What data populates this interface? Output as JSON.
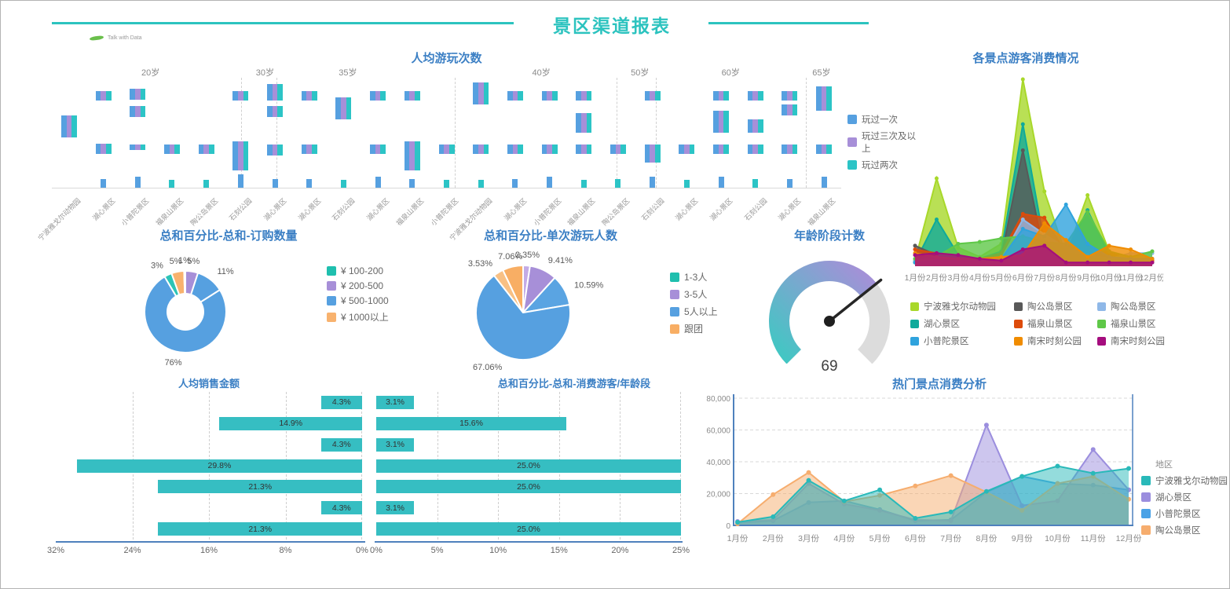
{
  "header": {
    "title": "景区渠道报表",
    "logo_text": "Talk with Data",
    "accent_color": "#2cc3bf",
    "title_color": "#3b7fc4"
  },
  "chart_data": [
    {
      "id": "visits",
      "type": "bar",
      "title": "人均游玩次数",
      "legend": [
        {
          "label": "玩过一次",
          "color": "#56a0e0"
        },
        {
          "label": "玩过三次及以上",
          "color": "#a78fd8"
        },
        {
          "label": "玩过两次",
          "color": "#2cc4c6"
        }
      ],
      "age_groups": [
        {
          "label": "20岁",
          "x": 0.125
        },
        {
          "label": "30岁",
          "x": 0.27
        },
        {
          "label": "35岁",
          "x": 0.375
        },
        {
          "label": "40岁",
          "x": 0.62
        },
        {
          "label": "50岁",
          "x": 0.745
        },
        {
          "label": "60岁",
          "x": 0.86
        },
        {
          "label": "65岁",
          "x": 0.975
        }
      ],
      "separators": [
        0.24,
        0.285,
        0.51,
        0.715,
        0.765,
        0.955
      ],
      "columns": [
        {
          "label": "宁波雅戈尔动物园",
          "bars": [
            [
              0.34,
              0.2,
              "t"
            ]
          ]
        },
        {
          "label": "湖心景区",
          "bars": [
            [
              0.12,
              0.09,
              "t"
            ],
            [
              0.6,
              0.09,
              "t"
            ],
            [
              0.92,
              0.08,
              "b"
            ]
          ]
        },
        {
          "label": "小普陀景区",
          "bars": [
            [
              0.1,
              0.1,
              "t"
            ],
            [
              0.26,
              0.1,
              "t"
            ],
            [
              0.61,
              0.05,
              "t"
            ],
            [
              0.9,
              0.1,
              "b"
            ]
          ]
        },
        {
          "label": "福泉山景区",
          "bars": [
            [
              0.61,
              0.08,
              "t"
            ],
            [
              0.93,
              0.07,
              "g"
            ]
          ]
        },
        {
          "label": "陶公岛景区",
          "bars": [
            [
              0.61,
              0.08,
              "t"
            ],
            [
              0.93,
              0.07,
              "g"
            ]
          ]
        },
        {
          "label": "石刻公园",
          "bars": [
            [
              0.12,
              0.09,
              "t"
            ],
            [
              0.58,
              0.26,
              "t"
            ],
            [
              0.88,
              0.12,
              "b"
            ]
          ]
        },
        {
          "label": "湖心景区",
          "bars": [
            [
              0.06,
              0.15,
              "t"
            ],
            [
              0.26,
              0.1,
              "t"
            ],
            [
              0.61,
              0.1,
              "t"
            ],
            [
              0.92,
              0.08,
              "b"
            ]
          ]
        },
        {
          "label": "湖心景区",
          "bars": [
            [
              0.12,
              0.09,
              "t"
            ],
            [
              0.61,
              0.08,
              "t"
            ],
            [
              0.92,
              0.08,
              "b"
            ]
          ]
        },
        {
          "label": "石刻公园",
          "bars": [
            [
              0.18,
              0.2,
              "t"
            ],
            [
              0.93,
              0.07,
              "g"
            ]
          ]
        },
        {
          "label": "湖心景区",
          "bars": [
            [
              0.12,
              0.09,
              "t"
            ],
            [
              0.61,
              0.08,
              "t"
            ],
            [
              0.9,
              0.1,
              "b"
            ]
          ]
        },
        {
          "label": "福泉山景区",
          "bars": [
            [
              0.12,
              0.09,
              "t"
            ],
            [
              0.58,
              0.26,
              "t"
            ],
            [
              0.92,
              0.08,
              "b"
            ]
          ]
        },
        {
          "label": "小普陀景区",
          "bars": [
            [
              0.61,
              0.08,
              "t"
            ],
            [
              0.93,
              0.07,
              "g"
            ]
          ]
        },
        {
          "label": "宁波雅戈尔动物园",
          "bars": [
            [
              0.04,
              0.2,
              "t"
            ],
            [
              0.61,
              0.08,
              "t"
            ],
            [
              0.93,
              0.07,
              "g"
            ]
          ]
        },
        {
          "label": "湖心景区",
          "bars": [
            [
              0.12,
              0.09,
              "t"
            ],
            [
              0.61,
              0.08,
              "t"
            ],
            [
              0.92,
              0.08,
              "b"
            ]
          ]
        },
        {
          "label": "小普陀景区",
          "bars": [
            [
              0.12,
              0.09,
              "t"
            ],
            [
              0.61,
              0.08,
              "t"
            ],
            [
              0.9,
              0.1,
              "b"
            ]
          ]
        },
        {
          "label": "福泉山景区",
          "bars": [
            [
              0.12,
              0.09,
              "t"
            ],
            [
              0.32,
              0.18,
              "t"
            ],
            [
              0.61,
              0.08,
              "t"
            ],
            [
              0.93,
              0.07,
              "g"
            ]
          ]
        },
        {
          "label": "陶公岛景区",
          "bars": [
            [
              0.61,
              0.08,
              "t"
            ],
            [
              0.92,
              0.08,
              "g"
            ]
          ]
        },
        {
          "label": "石刻公园",
          "bars": [
            [
              0.12,
              0.09,
              "t"
            ],
            [
              0.61,
              0.16,
              "t"
            ],
            [
              0.9,
              0.1,
              "b"
            ]
          ]
        },
        {
          "label": "湖心景区",
          "bars": [
            [
              0.61,
              0.08,
              "t"
            ],
            [
              0.93,
              0.07,
              "g"
            ]
          ]
        },
        {
          "label": "湖心景区",
          "bars": [
            [
              0.12,
              0.09,
              "t"
            ],
            [
              0.3,
              0.2,
              "t"
            ],
            [
              0.61,
              0.08,
              "t"
            ],
            [
              0.9,
              0.1,
              "b"
            ]
          ]
        },
        {
          "label": "石刻公园",
          "bars": [
            [
              0.12,
              0.09,
              "t"
            ],
            [
              0.38,
              0.12,
              "t"
            ],
            [
              0.61,
              0.08,
              "t"
            ],
            [
              0.92,
              0.08,
              "g"
            ]
          ]
        },
        {
          "label": "湖心景区",
          "bars": [
            [
              0.12,
              0.09,
              "t"
            ],
            [
              0.24,
              0.1,
              "t"
            ],
            [
              0.61,
              0.08,
              "t"
            ],
            [
              0.92,
              0.08,
              "b"
            ]
          ]
        },
        {
          "label": "福泉山景区",
          "bars": [
            [
              0.08,
              0.22,
              "t"
            ],
            [
              0.61,
              0.08,
              "t"
            ],
            [
              0.9,
              0.1,
              "b"
            ]
          ]
        }
      ]
    },
    {
      "id": "spot_consumption",
      "type": "area",
      "title": "各景点游客消费情况",
      "months": [
        "1月份",
        "2月份",
        "3月份",
        "4月份",
        "5月份",
        "6月份",
        "7月份",
        "8月份",
        "9月份",
        "10月份",
        "11月份",
        "12月份"
      ],
      "ymax": 100,
      "series": [
        {
          "label": "宁波雅戈尔动物园",
          "color": "#a8d82a",
          "values": [
            3,
            47,
            10,
            5,
            12,
            100,
            40,
            6,
            38,
            8,
            3,
            3
          ]
        },
        {
          "label": "湖心景区",
          "color": "#0faa9b",
          "values": [
            2,
            25,
            6,
            4,
            8,
            76,
            12,
            8,
            30,
            6,
            3,
            4
          ]
        },
        {
          "label": "小普陀景区",
          "color": "#2fa3dd",
          "values": [
            2,
            3,
            3,
            3,
            4,
            20,
            16,
            33,
            12,
            5,
            4,
            4
          ]
        },
        {
          "label": "陶公岛景区",
          "color": "#595959",
          "values": [
            11,
            6,
            4,
            3,
            5,
            62,
            6,
            3,
            3,
            3,
            2,
            2
          ]
        },
        {
          "label": "福泉山景区",
          "color": "#dd4b0b",
          "values": [
            9,
            7,
            5,
            4,
            7,
            28,
            26,
            7,
            6,
            8,
            4,
            3
          ]
        },
        {
          "label": "南宋时刻公园",
          "color": "#f08c00",
          "values": [
            7,
            5,
            4,
            4,
            5,
            6,
            23,
            14,
            5,
            11,
            9,
            4
          ]
        },
        {
          "label": "陶公岛景区",
          "color": "#8fb8e8",
          "values": [
            3,
            3,
            3,
            3,
            4,
            25,
            17,
            10,
            6,
            4,
            7,
            7
          ]
        },
        {
          "label": "福泉山景区",
          "color": "#5fc848",
          "values": [
            4,
            5,
            12,
            13,
            15,
            16,
            13,
            12,
            29,
            8,
            5,
            8
          ]
        },
        {
          "label": "南宋时刻公园",
          "color": "#a50d7e",
          "values": [
            6,
            7,
            6,
            4,
            3,
            9,
            11,
            2,
            2,
            2,
            2,
            2
          ]
        }
      ]
    },
    {
      "id": "order_quantity",
      "type": "pie",
      "title": "总和百分比-总和-订购数量",
      "slices": [
        {
          "pct": "5%",
          "value": 5,
          "color": "#a78fd8"
        },
        {
          "pct": "11%",
          "value": 11,
          "color": "#56a0e0"
        },
        {
          "pct": "76%",
          "value": 75.5,
          "color": "#56a0e0"
        },
        {
          "pct": "3%",
          "value": 3,
          "color": "#2cc4b6"
        },
        {
          "pct": "5%",
          "value": 5,
          "color": "#f8b26e"
        },
        {
          "pct": "1%",
          "value": 0.5,
          "color": "#cfe3f7"
        }
      ],
      "legend": [
        {
          "label": "¥ 100-200",
          "color": "#1fbfae"
        },
        {
          "label": "¥ 200-500",
          "color": "#a78fd8"
        },
        {
          "label": "¥ 500-1000",
          "color": "#56a0e0"
        },
        {
          "label": "¥ 1000以上",
          "color": "#f8b26e"
        }
      ]
    },
    {
      "id": "party_size",
      "type": "pie",
      "title": "总和百分比-单次游玩人数",
      "slices": [
        {
          "pct": "2.35%",
          "value": 2.35,
          "color": "#c3abe6"
        },
        {
          "pct": "9.41%",
          "value": 9.41,
          "color": "#a78fd8"
        },
        {
          "pct": "10.59%",
          "value": 10.59,
          "color": "#5aa4e2"
        },
        {
          "pct": "67.06%",
          "value": 67.06,
          "color": "#56a0e0"
        },
        {
          "pct": "3.53%",
          "value": 3.53,
          "color": "#f8c084"
        },
        {
          "pct": "7.06%",
          "value": 7.06,
          "color": "#f8ae64"
        }
      ],
      "legend": [
        {
          "label": "1-3人",
          "color": "#1fbfae"
        },
        {
          "label": "3-5人",
          "color": "#a78fd8"
        },
        {
          "label": "5人以上",
          "color": "#56a0e0"
        },
        {
          "label": "跟团",
          "color": "#f8ae64"
        }
      ]
    },
    {
      "id": "age_gauge",
      "type": "gauge",
      "title": "年龄阶段计数",
      "value": 69,
      "min": 0,
      "max": 100,
      "color_start": "#41c7c3",
      "color_end": "#a78fd8",
      "color_rest": "#dcdcdc"
    },
    {
      "id": "sales",
      "type": "bar",
      "title": "人均销售金额",
      "direction": "left",
      "max": 32,
      "values": [
        4.3,
        14.9,
        4.3,
        29.8,
        21.3,
        4.3,
        21.3
      ],
      "labels": [
        "4.3%",
        "14.9%",
        "4.3%",
        "29.8%",
        "21.3%",
        "4.3%",
        "21.3%"
      ],
      "ticks": [
        "32%",
        "24%",
        "16%",
        "8%",
        "0%"
      ],
      "bar_color": "#36bec2"
    },
    {
      "id": "consumer_age",
      "type": "bar",
      "title": "总和百分比-总和-消费游客/年龄段",
      "direction": "right",
      "max": 25,
      "values": [
        3.1,
        15.6,
        3.1,
        25.0,
        25.0,
        3.1,
        25.0
      ],
      "labels": [
        "3.1%",
        "15.6%",
        "3.1%",
        "25.0%",
        "25.0%",
        "3.1%",
        "25.0%"
      ],
      "ticks": [
        "0%",
        "5%",
        "10%",
        "15%",
        "20%",
        "25%"
      ],
      "bar_color": "#36bec2"
    },
    {
      "id": "hot_spot",
      "type": "area",
      "title": "热门景点消费分析",
      "legend_title": "地区",
      "months": [
        "1月份",
        "2月份",
        "3月份",
        "4月份",
        "5月份",
        "6月份",
        "7月份",
        "8月份",
        "9月份",
        "10月份",
        "11月份",
        "12月份"
      ],
      "ymax": 80000,
      "y_ticks": [
        "80,000",
        "60,000",
        "40,000",
        "20,000",
        "0"
      ],
      "series": [
        {
          "label": "宁波雅戈尔动物园",
          "color": "#29b9b9",
          "values": [
            1500,
            5000,
            28000,
            15000,
            22000,
            4000,
            8000,
            21000,
            30500,
            37000,
            32500,
            35500
          ]
        },
        {
          "label": "湖心景区",
          "color": "#9b8ede",
          "values": [
            2000,
            3000,
            26000,
            13000,
            9000,
            3000,
            2500,
            63000,
            12000,
            15000,
            47500,
            22000
          ]
        },
        {
          "label": "小普陀景区",
          "color": "#4aa2e6",
          "values": [
            1000,
            2500,
            14000,
            15000,
            9500,
            2500,
            3000,
            20500,
            30500,
            26000,
            25000,
            22000
          ]
        },
        {
          "label": "陶公岛景区",
          "color": "#f6ad6e",
          "values": [
            500,
            19000,
            33000,
            14500,
            18500,
            24500,
            31000,
            20500,
            9000,
            26000,
            30500,
            16000
          ]
        }
      ]
    }
  ]
}
